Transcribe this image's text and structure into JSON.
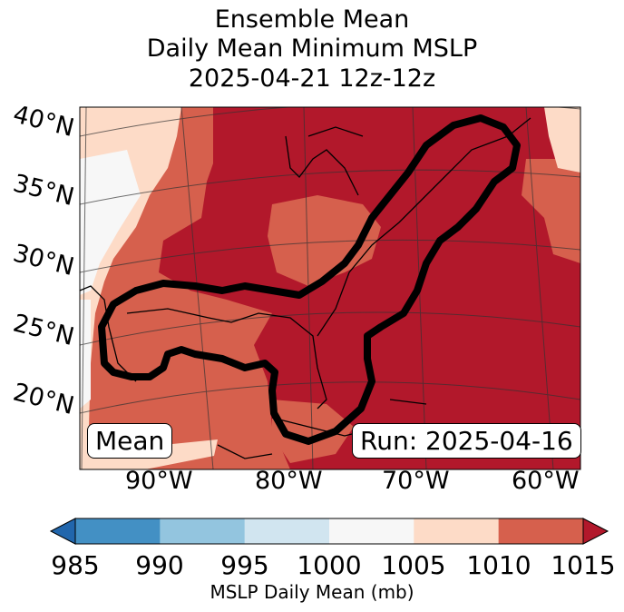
{
  "title": {
    "line1": "Ensemble Mean",
    "line2": "Daily Mean Minimum MSLP",
    "line3": "2025-04-21 12z-12z"
  },
  "map": {
    "lat_labels": [
      "40°N",
      "35°N",
      "30°N",
      "25°N",
      "20°N"
    ],
    "lon_labels": [
      "90°W",
      "80°W",
      "70°W",
      "60°W"
    ],
    "badge_left": "Mean",
    "badge_right": "Run: 2025-04-16",
    "colors": {
      "985-990": "#4390c4",
      "990-995": "#93c5df",
      "995-1000": "#d1e5f0",
      "1000-1005": "#f7f7f7",
      "1005-1010": "#fddbc7",
      "1010-1015": "#d6604d",
      "1015+": "#b2182b"
    }
  },
  "colorbar": {
    "ticks": [
      "985",
      "990",
      "995",
      "1000",
      "1005",
      "1010",
      "1015"
    ],
    "label": "MSLP Daily Mean (mb)",
    "under_color": "#2166ac",
    "over_color": "#b2182b",
    "bins": [
      "#4390c4",
      "#93c5df",
      "#d1e5f0",
      "#f7f7f7",
      "#fddbc7",
      "#d6604d"
    ]
  }
}
